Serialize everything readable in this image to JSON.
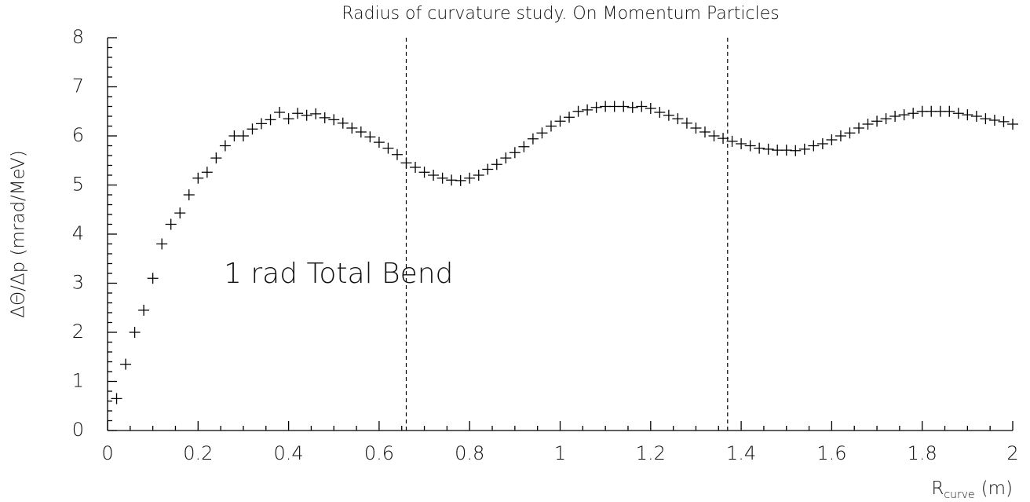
{
  "chart_data": {
    "type": "scatter",
    "title": "Radius of curvature study.  On Momentum Particles",
    "y_label": "ΔΘ/Δp (mrad/MeV)",
    "x_label": [
      "R",
      "curve",
      "(m)"
    ],
    "annotation": "1 rad Total Bend",
    "marker": "cross",
    "color": "#000000",
    "xlim": [
      0,
      2
    ],
    "ylim": [
      0,
      8
    ],
    "xticks": [
      0,
      0.2,
      0.4,
      0.6,
      0.8,
      1,
      1.2,
      1.4,
      1.6,
      1.8,
      2
    ],
    "yticks": [
      0,
      1,
      2,
      3,
      4,
      5,
      6,
      7,
      8
    ],
    "xminor_ticks": [
      0.05,
      0.1,
      0.15,
      0.25,
      0.3,
      0.35,
      0.45,
      0.5,
      0.55,
      0.65,
      0.7,
      0.75,
      0.85,
      0.9,
      0.95,
      1.05,
      1.1,
      1.15,
      1.25,
      1.3,
      1.35,
      1.45,
      1.5,
      1.55,
      1.65,
      1.7,
      1.75,
      1.85,
      1.9,
      1.95
    ],
    "yminor_ticks": [
      0.2,
      0.4,
      0.6,
      0.8,
      1.2,
      1.4,
      1.6,
      1.8,
      2.2,
      2.4,
      2.6,
      2.8,
      3.2,
      3.4,
      3.6,
      3.8,
      4.2,
      4.4,
      4.6,
      4.8,
      5.2,
      5.4,
      5.6,
      5.8,
      6.2,
      6.4,
      6.6,
      6.8,
      7.2,
      7.4,
      7.6,
      7.8
    ],
    "vlines": [
      0.66,
      1.37
    ],
    "x": [
      0.02,
      0.04,
      0.06,
      0.08,
      0.1,
      0.12,
      0.14,
      0.16,
      0.18,
      0.2,
      0.22,
      0.24,
      0.26,
      0.28,
      0.3,
      0.32,
      0.34,
      0.36,
      0.38,
      0.4,
      0.42,
      0.44,
      0.46,
      0.48,
      0.5,
      0.52,
      0.54,
      0.56,
      0.58,
      0.6,
      0.62,
      0.64,
      0.66,
      0.68,
      0.7,
      0.72,
      0.74,
      0.76,
      0.78,
      0.8,
      0.82,
      0.84,
      0.86,
      0.88,
      0.9,
      0.92,
      0.94,
      0.96,
      0.98,
      1,
      1.02,
      1.04,
      1.06,
      1.08,
      1.1,
      1.12,
      1.14,
      1.16,
      1.18,
      1.2,
      1.22,
      1.24,
      1.26,
      1.28,
      1.3,
      1.32,
      1.34,
      1.36,
      1.38,
      1.4,
      1.42,
      1.44,
      1.46,
      1.48,
      1.5,
      1.52,
      1.54,
      1.56,
      1.58,
      1.6,
      1.62,
      1.64,
      1.66,
      1.68,
      1.7,
      1.72,
      1.74,
      1.76,
      1.78,
      1.8,
      1.82,
      1.84,
      1.86,
      1.88,
      1.9,
      1.92,
      1.94,
      1.96,
      1.98,
      2
    ],
    "values": [
      0.65,
      1.35,
      2.0,
      2.45,
      3.1,
      3.8,
      4.2,
      4.43,
      4.8,
      5.14,
      5.26,
      5.55,
      5.8,
      6.0,
      6.0,
      6.14,
      6.25,
      6.33,
      6.48,
      6.35,
      6.46,
      6.42,
      6.45,
      6.37,
      6.33,
      6.26,
      6.16,
      6.08,
      5.98,
      5.87,
      5.75,
      5.62,
      5.45,
      5.36,
      5.26,
      5.2,
      5.14,
      5.1,
      5.09,
      5.14,
      5.2,
      5.32,
      5.42,
      5.55,
      5.66,
      5.78,
      5.94,
      6.06,
      6.2,
      6.3,
      6.38,
      6.5,
      6.53,
      6.58,
      6.6,
      6.6,
      6.6,
      6.58,
      6.6,
      6.56,
      6.48,
      6.42,
      6.35,
      6.26,
      6.16,
      6.08,
      6.0,
      5.95,
      5.89,
      5.84,
      5.8,
      5.75,
      5.73,
      5.71,
      5.71,
      5.7,
      5.73,
      5.8,
      5.84,
      5.92,
      6.0,
      6.06,
      6.16,
      6.24,
      6.3,
      6.35,
      6.4,
      6.43,
      6.46,
      6.5,
      6.5,
      6.5,
      6.5,
      6.46,
      6.43,
      6.4,
      6.35,
      6.32,
      6.29,
      6.24
    ]
  }
}
